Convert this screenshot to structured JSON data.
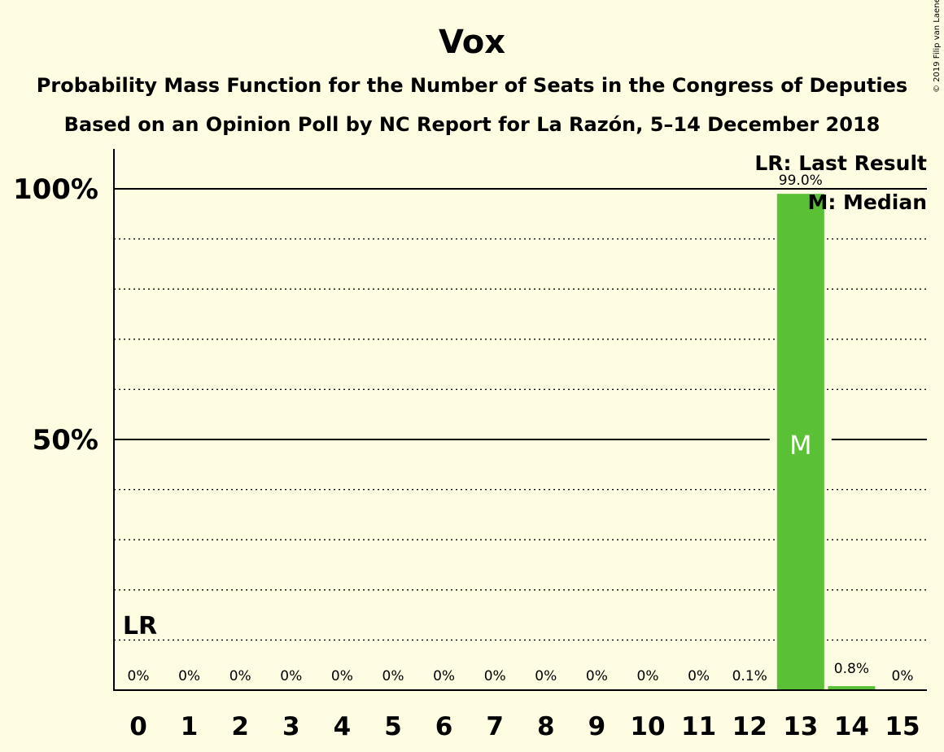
{
  "copyright": "© 2019 Filip van Laenen",
  "chart_data": {
    "type": "bar",
    "title": "Vox",
    "subtitle_lines": [
      "Probability Mass Function for the Number of Seats in the Congress of Deputies",
      "Based on an Opinion Poll by NC Report for La Razón, 5–14 December 2018"
    ],
    "xlabel": "",
    "ylabel": "",
    "categories": [
      "0",
      "1",
      "2",
      "3",
      "4",
      "5",
      "6",
      "7",
      "8",
      "9",
      "10",
      "11",
      "12",
      "13",
      "14",
      "15"
    ],
    "values": [
      0,
      0,
      0,
      0,
      0,
      0,
      0,
      0,
      0,
      0,
      0,
      0,
      0.1,
      99.0,
      0.8,
      0
    ],
    "value_labels": [
      "0%",
      "0%",
      "0%",
      "0%",
      "0%",
      "0%",
      "0%",
      "0%",
      "0%",
      "0%",
      "0%",
      "0%",
      "0.1%",
      "99.0%",
      "0.8%",
      "0%"
    ],
    "ylim": [
      0,
      100
    ],
    "y_ticks": [
      {
        "value": 50,
        "label": "50%"
      },
      {
        "value": 100,
        "label": "100%"
      }
    ],
    "grid": "dotted every 10%, solid at 50% and 100%",
    "bar_color": "#5ac136",
    "background_color": "#fffde1",
    "last_result": {
      "seat": "0",
      "label": "LR"
    },
    "median": {
      "seat": "13",
      "label": "M"
    },
    "legend": [
      "LR: Last Result",
      "M: Median"
    ],
    "legend_position": "top-right"
  }
}
